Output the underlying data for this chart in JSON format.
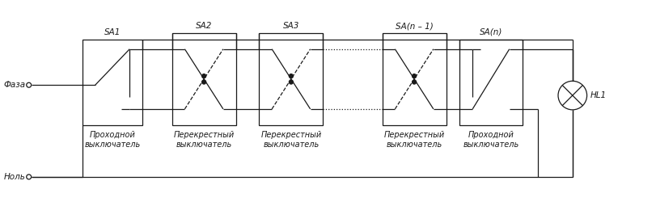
{
  "bg_color": "#ffffff",
  "line_color": "#1a1a1a",
  "lw": 0.9,
  "fig_w": 8.11,
  "fig_h": 2.5,
  "dpi": 100,
  "labels": {
    "faza": "Фаза",
    "nol": "Ноль",
    "SA1": "SA1",
    "SA2": "SA2",
    "SA3": "SA3",
    "SAn1": "SA(n – 1)",
    "SAn": "SA(n)",
    "HL1": "HL1",
    "sw1": "Проходной\nвыключатель",
    "sw2": "Перекрестный\nвыключатель",
    "sw3": "Перекрестный\nвыключатель",
    "sw4": "Перекрестный\nвыключатель",
    "sw5": "Проходной\nвыключатель"
  }
}
